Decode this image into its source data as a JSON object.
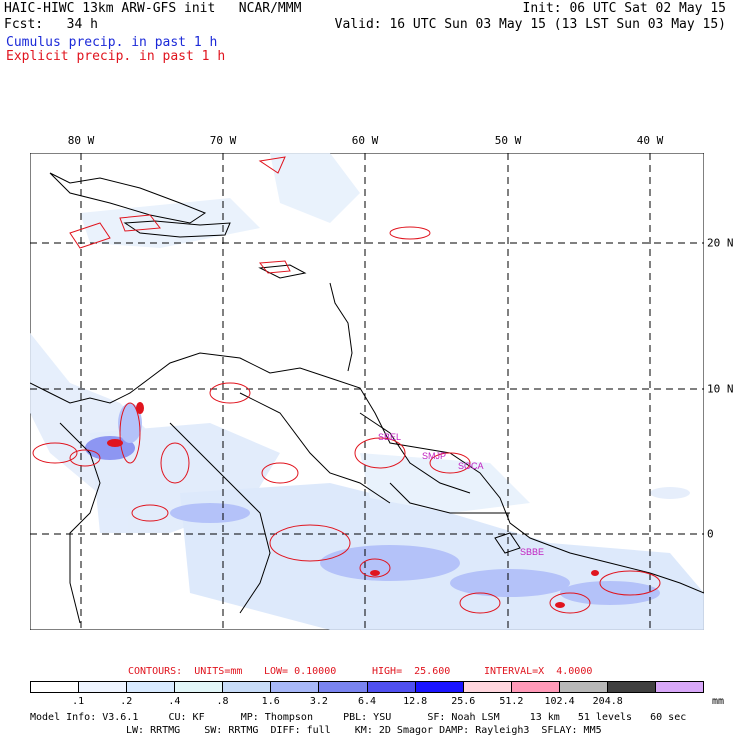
{
  "header": {
    "title": "HAIC-HIWC 13km ARW-GFS init   NCAR/MMM",
    "fcst": "Fcst:   34 h",
    "init": "Init: 06 UTC Sat 02 May 15",
    "valid": "Valid: 16 UTC Sun 03 May 15 (13 LST Sun 03 May 15)",
    "cumulus": "Cumulus precip. in past 1 h",
    "explicit": "Explicit precip. in past 1 h"
  },
  "map": {
    "lon_labels": [
      "80 W",
      "70 W",
      "60 W",
      "50 W",
      "40 W"
    ],
    "lat_labels": [
      "20 N",
      "10 N",
      "0"
    ],
    "station_labels": [
      "SBEL",
      "SMJP",
      "SOCA",
      "SBBE"
    ],
    "colors": {
      "cumulus": "#1c2ad8",
      "explicit": "#e0141e",
      "grid": "#000000",
      "magenta": "#c020c0"
    }
  },
  "contours": {
    "units": "CONTOURS:  UNITS=mm",
    "low": "LOW= 0.10000",
    "high": "HIGH=  25.600",
    "interval": "INTERVAL=X  4.0000"
  },
  "colorbar": {
    "labels": [
      ".1",
      ".2",
      ".4",
      ".8",
      "1.6",
      "3.2",
      "6.4",
      "12.8",
      "25.6",
      "51.2",
      "102.4",
      "204.8"
    ],
    "unit": "mm",
    "colors": [
      "#ffffff",
      "#eef4ff",
      "#d8eaff",
      "#e2f6f8",
      "#c8dcf8",
      "#a8b8f8",
      "#7a84f0",
      "#5050f0",
      "#1a14ff",
      "#ffd6de",
      "#ff9ab8",
      "#b8b8b8",
      "#404040",
      "#d8a8f8"
    ]
  },
  "model_info": {
    "line1": "Model Info: V3.6.1     CU: KF      MP: Thompson     PBL: YSU      SF: Noah LSM     13 km   51 levels   60 sec",
    "line2": "LW: RRTMG    SW: RRTMG  DIFF: full    KM: 2D Smagor DAMP: Rayleigh3  SFLAY: MM5"
  }
}
